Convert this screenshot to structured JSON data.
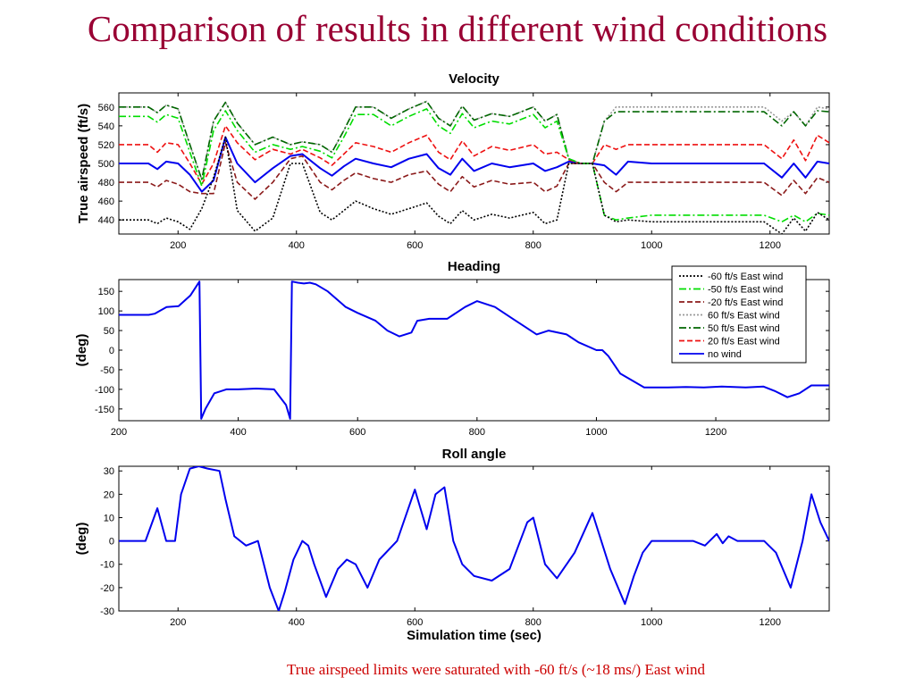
{
  "slide": {
    "title": "Comparison of results in different wind conditions",
    "footnote": "True airspeed limits were saturated with -60 ft/s (~18 ms/) East wind"
  },
  "colors": {
    "title": "#990033",
    "footnote": "#cc0000"
  },
  "chart_data": [
    {
      "type": "line",
      "title": "Velocity",
      "xlabel": "",
      "ylabel": "True airspeed (ft/s)",
      "xlim": [
        100,
        1300
      ],
      "ylim": [
        425,
        575
      ],
      "xticks": [
        200,
        400,
        600,
        800,
        1000,
        1200
      ],
      "yticks": [
        440,
        460,
        480,
        500,
        520,
        540,
        560
      ],
      "grid": false,
      "series": [
        {
          "name": "no wind",
          "color": "#0000ee",
          "dash": "solid",
          "x": [
            100,
            150,
            165,
            180,
            200,
            220,
            240,
            260,
            280,
            300,
            330,
            360,
            390,
            410,
            440,
            460,
            480,
            500,
            530,
            560,
            590,
            620,
            640,
            660,
            680,
            700,
            730,
            760,
            800,
            820,
            840,
            860,
            880,
            900,
            920,
            940,
            960,
            1000,
            1050,
            1100,
            1150,
            1190,
            1220,
            1240,
            1260,
            1280,
            1300
          ],
          "y": [
            500,
            500,
            494,
            502,
            500,
            488,
            470,
            482,
            528,
            500,
            480,
            495,
            508,
            510,
            495,
            487,
            497,
            505,
            500,
            496,
            505,
            510,
            495,
            488,
            505,
            492,
            500,
            496,
            500,
            492,
            496,
            502,
            500,
            500,
            498,
            488,
            502,
            500,
            500,
            500,
            500,
            500,
            485,
            500,
            485,
            502,
            500
          ]
        },
        {
          "name": "20 ft/s East wind",
          "color": "#ee1111",
          "dash": "6,3",
          "x": [
            100,
            150,
            165,
            180,
            200,
            220,
            240,
            260,
            280,
            300,
            330,
            360,
            390,
            410,
            440,
            460,
            480,
            500,
            530,
            560,
            590,
            620,
            640,
            660,
            680,
            700,
            730,
            760,
            800,
            820,
            840,
            860,
            880,
            900,
            920,
            940,
            960,
            1000,
            1050,
            1100,
            1150,
            1190,
            1220,
            1240,
            1260,
            1280,
            1300
          ],
          "y": [
            520,
            520,
            512,
            522,
            520,
            500,
            478,
            500,
            540,
            522,
            504,
            515,
            510,
            515,
            506,
            498,
            510,
            522,
            518,
            512,
            522,
            530,
            512,
            504,
            524,
            508,
            518,
            514,
            520,
            510,
            512,
            504,
            500,
            500,
            520,
            515,
            520,
            520,
            520,
            520,
            520,
            520,
            505,
            525,
            503,
            530,
            522
          ]
        },
        {
          "name": "-20 ft/s East wind",
          "color": "#8b1a1a",
          "dash": "6,3",
          "x": [
            100,
            150,
            165,
            180,
            200,
            220,
            240,
            260,
            280,
            300,
            330,
            360,
            390,
            410,
            440,
            460,
            480,
            500,
            530,
            560,
            590,
            620,
            640,
            660,
            680,
            700,
            730,
            760,
            800,
            820,
            840,
            860,
            880,
            900,
            920,
            940,
            960,
            1000,
            1050,
            1100,
            1150,
            1190,
            1220,
            1240,
            1260,
            1280,
            1300
          ],
          "y": [
            480,
            480,
            475,
            482,
            478,
            470,
            468,
            468,
            522,
            480,
            462,
            480,
            505,
            508,
            480,
            472,
            482,
            490,
            484,
            480,
            488,
            492,
            478,
            470,
            486,
            475,
            482,
            478,
            480,
            470,
            476,
            500,
            500,
            500,
            480,
            470,
            480,
            480,
            480,
            480,
            480,
            480,
            466,
            482,
            468,
            485,
            480
          ]
        },
        {
          "name": "60 ft/s East wind",
          "color": "#999999",
          "dash": "2,2",
          "x": [
            100,
            150,
            165,
            180,
            200,
            220,
            240,
            260,
            280,
            300,
            330,
            360,
            390,
            410,
            440,
            460,
            480,
            500,
            530,
            560,
            590,
            620,
            640,
            660,
            680,
            700,
            730,
            760,
            800,
            820,
            840,
            860,
            880,
            900,
            920,
            940,
            960,
            1000,
            1050,
            1100,
            1150,
            1190,
            1220,
            1240,
            1260,
            1280,
            1300
          ],
          "y": [
            560,
            560,
            554,
            562,
            558,
            520,
            483,
            545,
            565,
            543,
            520,
            528,
            520,
            523,
            520,
            512,
            535,
            560,
            560,
            548,
            558,
            566,
            548,
            540,
            561,
            546,
            553,
            550,
            560,
            545,
            552,
            505,
            500,
            500,
            545,
            560,
            560,
            560,
            560,
            560,
            560,
            560,
            545,
            555,
            540,
            560,
            558
          ]
        },
        {
          "name": "50 ft/s East wind",
          "color": "#006600",
          "dash": "8,3,2,3",
          "x": [
            100,
            150,
            165,
            180,
            200,
            220,
            240,
            260,
            280,
            300,
            330,
            360,
            390,
            410,
            440,
            460,
            480,
            500,
            530,
            560,
            590,
            620,
            640,
            660,
            680,
            700,
            730,
            760,
            800,
            820,
            840,
            860,
            880,
            900,
            920,
            940,
            960,
            1000,
            1050,
            1100,
            1150,
            1190,
            1220,
            1240,
            1260,
            1280,
            1300
          ],
          "y": [
            560,
            560,
            554,
            562,
            558,
            520,
            483,
            545,
            565,
            543,
            520,
            528,
            520,
            523,
            520,
            512,
            535,
            560,
            560,
            548,
            558,
            566,
            548,
            540,
            561,
            546,
            553,
            550,
            560,
            545,
            552,
            505,
            500,
            500,
            545,
            555,
            555,
            555,
            555,
            555,
            555,
            555,
            540,
            555,
            540,
            556,
            555
          ]
        },
        {
          "name": "-50 ft/s East wind",
          "color": "#00dd00",
          "dash": "8,3,2,3",
          "x": [
            100,
            150,
            165,
            180,
            200,
            220,
            240,
            260,
            280,
            300,
            330,
            360,
            390,
            410,
            440,
            460,
            480,
            500,
            530,
            560,
            590,
            620,
            640,
            660,
            680,
            700,
            730,
            760,
            800,
            820,
            840,
            860,
            880,
            900,
            920,
            940,
            960,
            1000,
            1050,
            1100,
            1150,
            1190,
            1220,
            1240,
            1260,
            1280,
            1300
          ],
          "y": [
            550,
            550,
            544,
            552,
            548,
            512,
            476,
            535,
            556,
            535,
            512,
            520,
            515,
            518,
            513,
            506,
            528,
            552,
            552,
            540,
            550,
            558,
            540,
            532,
            553,
            538,
            545,
            542,
            552,
            538,
            545,
            505,
            500,
            500,
            445,
            440,
            442,
            445,
            445,
            445,
            445,
            445,
            438,
            445,
            438,
            447,
            445
          ]
        },
        {
          "name": "-60 ft/s East wind",
          "color": "#000000",
          "dash": "2,2",
          "x": [
            100,
            150,
            165,
            180,
            200,
            220,
            240,
            260,
            280,
            300,
            330,
            360,
            390,
            410,
            440,
            460,
            480,
            500,
            530,
            560,
            590,
            620,
            640,
            660,
            680,
            700,
            730,
            760,
            800,
            820,
            840,
            860,
            880,
            900,
            920,
            940,
            960,
            1000,
            1050,
            1100,
            1150,
            1190,
            1220,
            1240,
            1260,
            1280,
            1300
          ],
          "y": [
            440,
            440,
            436,
            442,
            438,
            430,
            452,
            485,
            528,
            450,
            428,
            442,
            500,
            500,
            448,
            440,
            450,
            460,
            452,
            446,
            452,
            458,
            444,
            436,
            450,
            440,
            446,
            442,
            448,
            436,
            440,
            500,
            500,
            500,
            445,
            438,
            440,
            438,
            438,
            438,
            438,
            438,
            425,
            442,
            428,
            448,
            440
          ]
        }
      ]
    },
    {
      "type": "line",
      "title": "Heading",
      "xlabel": "",
      "ylabel": "(deg)",
      "xlim": [
        200,
        1390
      ],
      "ylim": [
        -180,
        180
      ],
      "xticks": [
        200,
        400,
        600,
        800,
        1000,
        1200
      ],
      "yticks": [
        -150,
        -100,
        -50,
        0,
        50,
        100,
        150
      ],
      "grid": false,
      "legend_position": "top-right",
      "legend": [
        "-60 ft/s East wind",
        "-50 ft/s East wind",
        "-20 ft/s East wind",
        "60 ft/s East wind",
        "50 ft/s East wind",
        "20 ft/s East wind",
        "no wind"
      ],
      "series": [
        {
          "name": "no wind",
          "color": "#0000ee",
          "dash": "solid",
          "x": [
            200,
            250,
            260,
            280,
            300,
            320,
            335,
            338,
            345,
            360,
            380,
            400,
            430,
            460,
            480,
            487,
            490,
            500,
            510,
            520,
            530,
            550,
            580,
            600,
            630,
            650,
            670,
            690,
            700,
            720,
            750,
            780,
            800,
            830,
            860,
            880,
            900,
            920,
            950,
            970,
            1000,
            1010,
            1020,
            1040,
            1080,
            1120,
            1150,
            1180,
            1210,
            1250,
            1280,
            1300,
            1320,
            1340,
            1360,
            1390
          ],
          "y": [
            90,
            90,
            93,
            110,
            112,
            140,
            175,
            -175,
            -150,
            -110,
            -100,
            -100,
            -98,
            -100,
            -140,
            -175,
            175,
            172,
            170,
            172,
            168,
            150,
            110,
            95,
            75,
            50,
            35,
            45,
            75,
            80,
            80,
            110,
            125,
            110,
            80,
            60,
            40,
            50,
            40,
            20,
            0,
            0,
            -15,
            -60,
            -95,
            -95,
            -94,
            -95,
            -93,
            -95,
            -93,
            -105,
            -120,
            -110,
            -90,
            -90
          ]
        }
      ]
    },
    {
      "type": "line",
      "title": "Roll angle",
      "xlabel": "Simulation time (sec)",
      "ylabel": "(deg)",
      "xlim": [
        100,
        1300
      ],
      "ylim": [
        -30,
        32
      ],
      "xticks": [
        200,
        400,
        600,
        800,
        1000,
        1200
      ],
      "yticks": [
        -30,
        -20,
        -10,
        0,
        10,
        20,
        30
      ],
      "grid": false,
      "series": [
        {
          "name": "no wind",
          "color": "#0000ee",
          "dash": "solid",
          "x": [
            100,
            145,
            165,
            180,
            195,
            205,
            220,
            235,
            250,
            270,
            280,
            295,
            315,
            335,
            355,
            370,
            380,
            395,
            410,
            420,
            430,
            450,
            470,
            485,
            500,
            520,
            540,
            570,
            600,
            620,
            635,
            650,
            665,
            680,
            700,
            730,
            760,
            790,
            800,
            820,
            840,
            870,
            900,
            930,
            955,
            970,
            985,
            1000,
            1020,
            1040,
            1070,
            1090,
            1110,
            1120,
            1130,
            1145,
            1155,
            1170,
            1190,
            1210,
            1235,
            1255,
            1270,
            1285,
            1300
          ],
          "y": [
            0,
            0,
            14,
            0,
            0,
            20,
            31,
            32,
            31,
            30,
            18,
            2,
            -2,
            0,
            -20,
            -30,
            -22,
            -8,
            0,
            -2,
            -10,
            -24,
            -12,
            -8,
            -10,
            -20,
            -8,
            0,
            22,
            5,
            20,
            23,
            0,
            -10,
            -15,
            -17,
            -12,
            8,
            10,
            -10,
            -16,
            -5,
            12,
            -12,
            -27,
            -15,
            -5,
            0,
            0,
            0,
            0,
            -2,
            3,
            -1,
            2,
            0,
            0,
            0,
            0,
            -5,
            -20,
            0,
            20,
            8,
            0
          ]
        }
      ]
    }
  ]
}
